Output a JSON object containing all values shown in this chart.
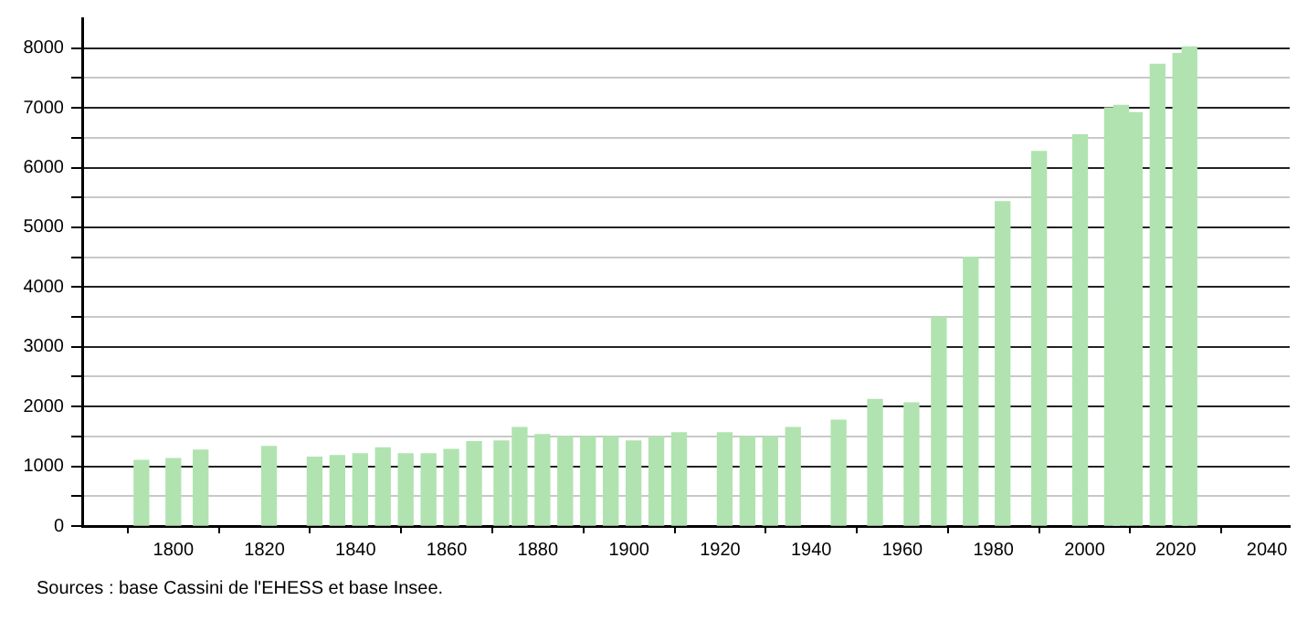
{
  "chart_data": {
    "type": "bar",
    "color": "#b0e3b0",
    "x": [
      1793,
      1800,
      1806,
      1821,
      1831,
      1836,
      1841,
      1846,
      1851,
      1856,
      1861,
      1866,
      1872,
      1876,
      1881,
      1886,
      1891,
      1896,
      1901,
      1906,
      1911,
      1921,
      1926,
      1931,
      1936,
      1946,
      1954,
      1962,
      1968,
      1975,
      1982,
      1990,
      1999,
      2006,
      2008,
      2011,
      2016,
      2021,
      2023
    ],
    "values": [
      1100,
      1130,
      1270,
      1330,
      1150,
      1180,
      1210,
      1310,
      1210,
      1210,
      1280,
      1410,
      1425,
      1650,
      1530,
      1495,
      1495,
      1495,
      1425,
      1495,
      1560,
      1560,
      1495,
      1495,
      1650,
      1770,
      2120,
      2060,
      3490,
      4500,
      5430,
      6270,
      6550,
      7000,
      7040,
      6920,
      7730,
      7910,
      8020
    ],
    "xlim": [
      1780,
      2045
    ],
    "xticks": [
      1800,
      1820,
      1840,
      1860,
      1880,
      1900,
      1920,
      1940,
      1960,
      1980,
      2000,
      2020,
      2040
    ],
    "ylim": [
      0,
      8500
    ],
    "yticks": [
      0,
      {
        "value": 500,
        "label": null
      },
      1000,
      {
        "value": 1500,
        "label": null
      },
      2000,
      {
        "value": 2500,
        "label": null
      },
      3000,
      {
        "value": 3500,
        "label": null
      },
      4000,
      {
        "value": 4500,
        "label": null
      },
      5000,
      {
        "value": 5500,
        "label": null
      },
      6000,
      {
        "value": 6500,
        "label": null
      },
      7000,
      {
        "value": 7500,
        "label": null
      },
      8000
    ],
    "grid": "y",
    "legend": false,
    "annotations": [
      "Sources : base Cassini de l'EHESS et base Insee."
    ]
  }
}
